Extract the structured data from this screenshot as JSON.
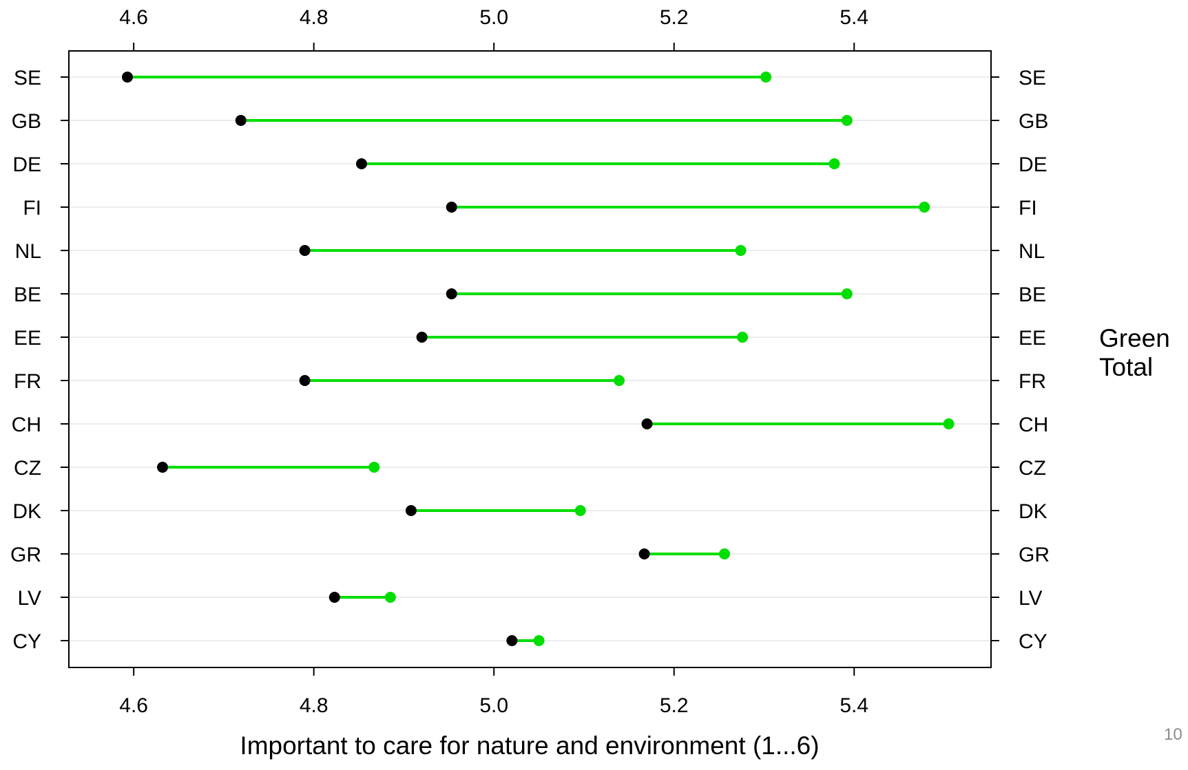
{
  "chart_data": {
    "type": "dot-range",
    "title": "",
    "xlabel": "Important to care for nature and environment (1...6)",
    "ylabel": "",
    "xlim": [
      4.528,
      5.552
    ],
    "xticks": [
      4.6,
      4.8,
      5.0,
      5.2,
      5.4
    ],
    "xtick_labels": [
      "4.6",
      "4.8",
      "5.0",
      "5.2",
      "5.4"
    ],
    "tick_labels_top": true,
    "tick_labels_bottom": true,
    "category_labels_left": true,
    "category_labels_right": true,
    "grid": "horizontal-light",
    "categories": [
      "SE",
      "GB",
      "DE",
      "FI",
      "NL",
      "BE",
      "EE",
      "FR",
      "CH",
      "CZ",
      "DK",
      "GR",
      "LV",
      "CY"
    ],
    "series": [
      {
        "name": "Total",
        "color": "#000000",
        "values": [
          4.593,
          4.719,
          4.853,
          4.953,
          4.79,
          4.953,
          4.92,
          4.79,
          5.17,
          4.632,
          4.908,
          5.167,
          4.823,
          5.02
        ]
      },
      {
        "name": "Green",
        "color": "#00DD00",
        "values": [
          5.302,
          5.392,
          5.378,
          5.478,
          5.274,
          5.392,
          5.276,
          5.139,
          5.505,
          4.867,
          5.096,
          5.256,
          4.885,
          5.05
        ]
      }
    ],
    "segment_color": "#00DD00",
    "legend": {
      "placement": "right",
      "entries": [
        "Green",
        "Total"
      ]
    }
  },
  "page_number": "10"
}
